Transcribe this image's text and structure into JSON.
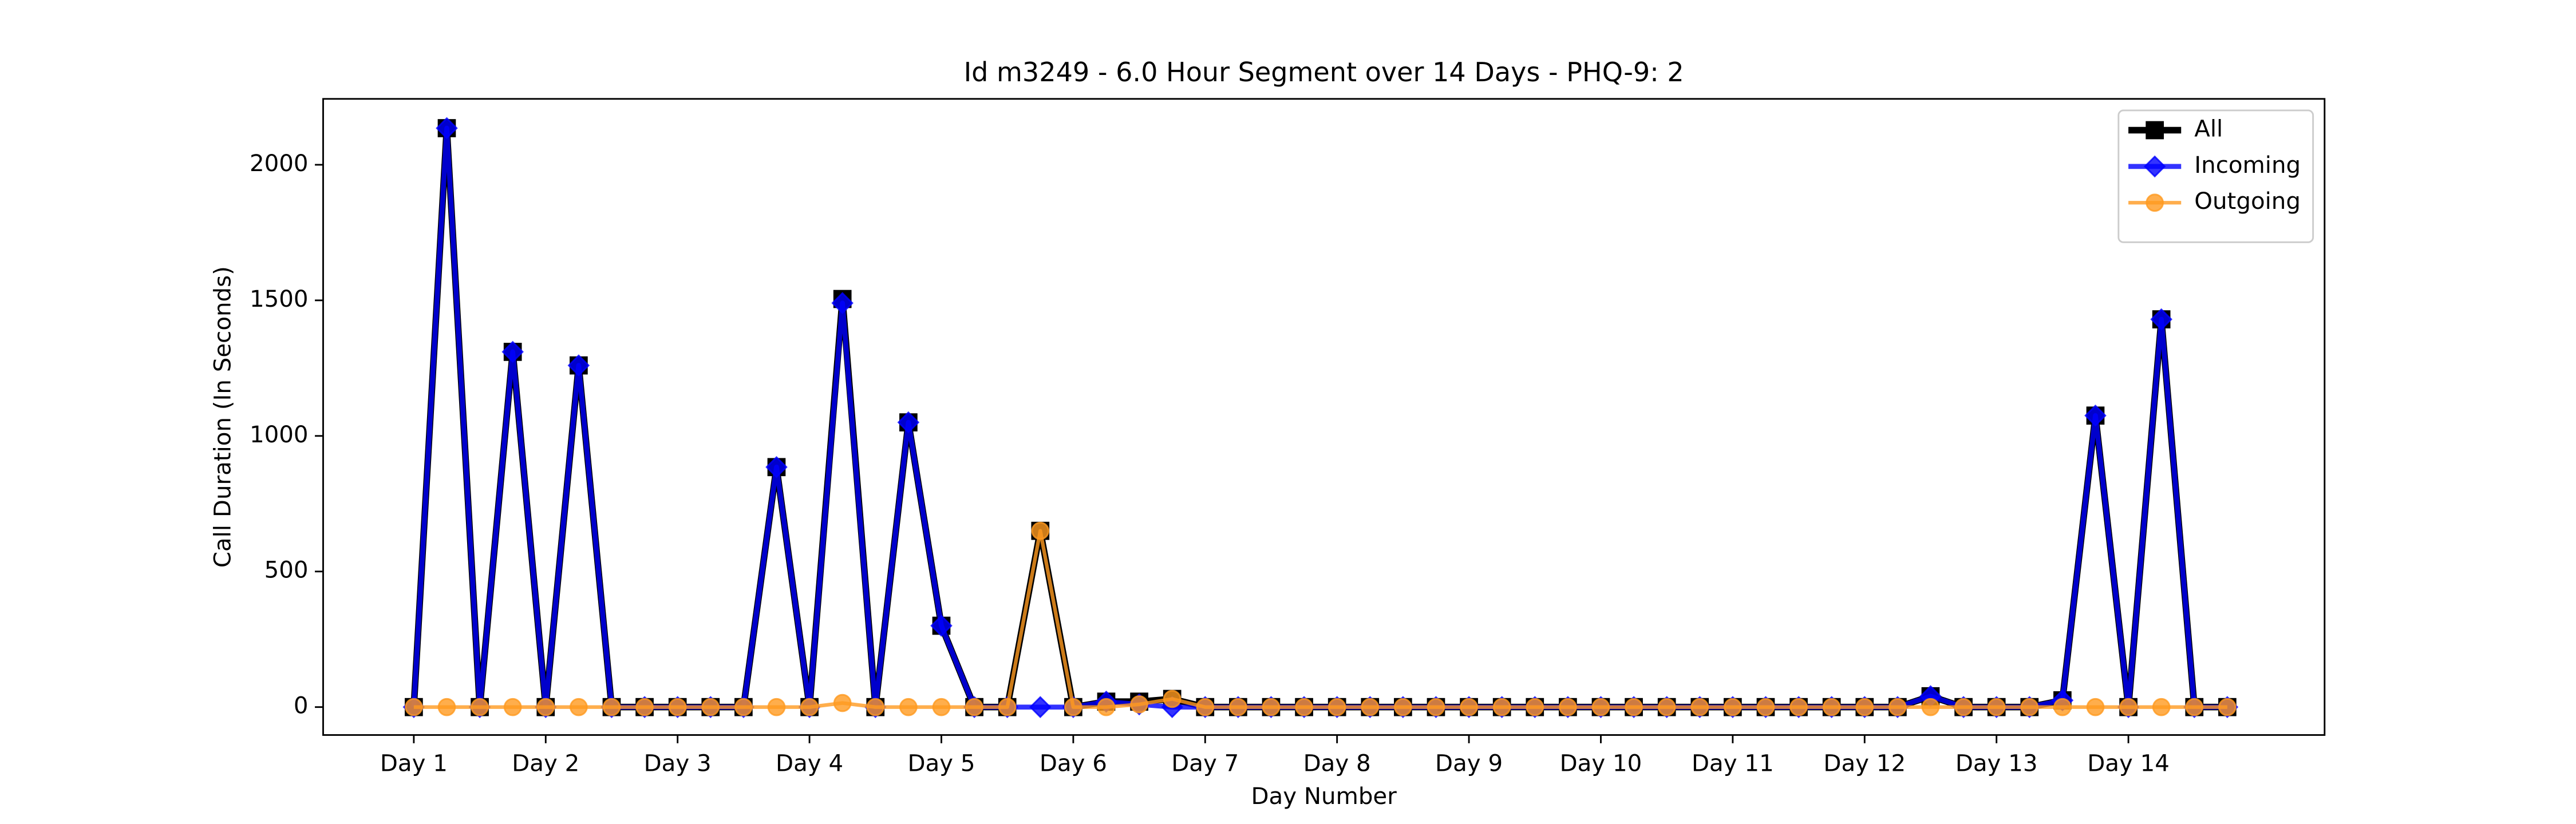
{
  "chart_data": {
    "type": "line",
    "title": "Id m3249 - 6.0 Hour Segment over 14 Days - PHQ-9: 2",
    "x_label": "Day Number",
    "y_label": "Call Duration (In Seconds)",
    "categories": [
      "Day 1",
      null,
      null,
      null,
      "Day 2",
      null,
      null,
      null,
      "Day 3",
      null,
      null,
      null,
      "Day 4",
      null,
      null,
      null,
      "Day 5",
      null,
      null,
      null,
      "Day 6",
      null,
      null,
      null,
      "Day 7",
      null,
      null,
      null,
      "Day 8",
      null,
      null,
      null,
      "Day 9",
      null,
      null,
      null,
      "Day 10",
      null,
      null,
      null,
      "Day 11",
      null,
      null,
      null,
      "Day 12",
      null,
      null,
      null,
      "Day 13",
      null,
      null,
      null,
      "Day 14",
      null,
      null,
      null
    ],
    "ylim": [
      -103,
      2243
    ],
    "yticks": [
      0,
      500,
      1000,
      1500,
      2000
    ],
    "legend": "upper right",
    "series": [
      {
        "name": "All",
        "color": "#000000",
        "marker": "square",
        "values": [
          0,
          2135,
          0,
          1310,
          0,
          1260,
          0,
          0,
          0,
          0,
          0,
          885,
          0,
          1505,
          0,
          1050,
          300,
          0,
          0,
          650,
          0,
          20,
          20,
          30,
          0,
          0,
          0,
          0,
          0,
          0,
          0,
          0,
          0,
          0,
          0,
          0,
          0,
          0,
          0,
          0,
          0,
          0,
          0,
          0,
          0,
          0,
          40,
          0,
          0,
          0,
          25,
          1075,
          0,
          1430,
          0,
          0
        ]
      },
      {
        "name": "Incoming",
        "color": "#0000ff",
        "marker": "diamond",
        "values": [
          0,
          2135,
          0,
          1310,
          0,
          1260,
          0,
          0,
          0,
          0,
          0,
          885,
          0,
          1490,
          0,
          1050,
          300,
          0,
          0,
          0,
          0,
          20,
          10,
          0,
          0,
          0,
          0,
          0,
          0,
          0,
          0,
          0,
          0,
          0,
          0,
          0,
          0,
          0,
          0,
          0,
          0,
          0,
          0,
          0,
          0,
          0,
          40,
          0,
          0,
          0,
          25,
          1075,
          0,
          1430,
          0,
          0
        ]
      },
      {
        "name": "Outgoing",
        "color": "#ff9a1f",
        "marker": "circle",
        "values": [
          0,
          0,
          0,
          0,
          0,
          0,
          0,
          0,
          0,
          0,
          0,
          0,
          0,
          15,
          0,
          0,
          0,
          0,
          0,
          650,
          0,
          0,
          10,
          30,
          0,
          0,
          0,
          0,
          0,
          0,
          0,
          0,
          0,
          0,
          0,
          0,
          0,
          0,
          0,
          0,
          0,
          0,
          0,
          0,
          0,
          0,
          0,
          0,
          0,
          0,
          0,
          0,
          0,
          0,
          0,
          0
        ]
      }
    ]
  }
}
